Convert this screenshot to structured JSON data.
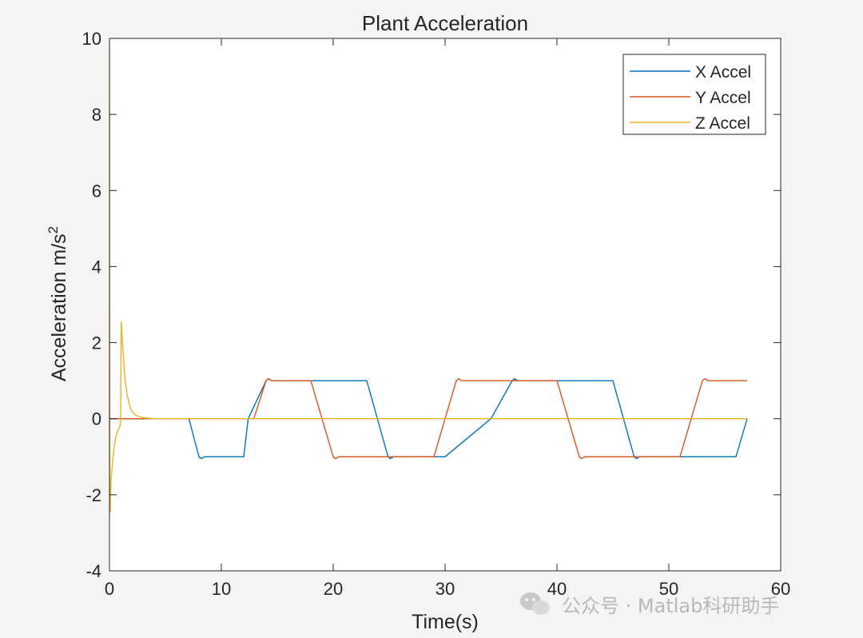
{
  "chart_data": {
    "type": "line",
    "title": "Plant Acceleration",
    "xlabel": "Time(s)",
    "ylabel": "Acceleration m/s",
    "ylabel_superscript": "2",
    "xlim": [
      0,
      60
    ],
    "ylim": [
      -4,
      10
    ],
    "xticks": [
      0,
      10,
      20,
      30,
      40,
      50,
      60
    ],
    "yticks": [
      -4,
      -2,
      0,
      2,
      4,
      6,
      8,
      10
    ],
    "grid": false,
    "legend_position": "top-right",
    "series": [
      {
        "name": "X Accel",
        "color": "#0072BD",
        "x": [
          0,
          7.1,
          8.0,
          8.2,
          8.5,
          10.0,
          12.0,
          12.4,
          14.0,
          14.2,
          14.5,
          18.0,
          21.0,
          23.0,
          24.9,
          25.1,
          25.4,
          27.0,
          29.0,
          30.0,
          34.1,
          36.0,
          36.2,
          36.5,
          40.0,
          43.0,
          45.0,
          46.9,
          47.1,
          47.4,
          50.0,
          51.0,
          56.0,
          57.0
        ],
        "y": [
          0,
          0,
          -1.0,
          -1.05,
          -1.0,
          -1.0,
          -1.0,
          0.0,
          1.0,
          1.05,
          1.0,
          1.0,
          1.0,
          1.0,
          -1.0,
          -1.05,
          -1.0,
          -1.0,
          -1.0,
          -1.0,
          0.0,
          1.0,
          1.05,
          1.0,
          1.0,
          1.0,
          1.0,
          -1.0,
          -1.05,
          -1.0,
          -1.0,
          -1.0,
          -1.0,
          0.0
        ]
      },
      {
        "name": "Y Accel",
        "color": "#D95319",
        "x": [
          0,
          12.9,
          14.0,
          14.2,
          14.5,
          18.0,
          20.0,
          20.2,
          20.5,
          23.0,
          29.0,
          31.0,
          31.2,
          31.5,
          35.0,
          36.0,
          40.0,
          42.0,
          42.2,
          42.5,
          45.0,
          51.0,
          53.0,
          53.2,
          53.5,
          57.0
        ],
        "y": [
          0,
          0,
          1.0,
          1.05,
          1.0,
          1.0,
          -1.0,
          -1.05,
          -1.0,
          -1.0,
          -1.0,
          1.0,
          1.05,
          1.0,
          1.0,
          1.0,
          1.0,
          -1.0,
          -1.05,
          -1.0,
          -1.0,
          -1.0,
          1.0,
          1.05,
          1.0,
          1.0
        ]
      },
      {
        "name": "Z Accel",
        "color": "#EDB120",
        "x": [
          0,
          0.03,
          0.07,
          0.1,
          0.15,
          0.25,
          0.4,
          0.55,
          0.75,
          0.95,
          1.0,
          1.05,
          1.1,
          1.25,
          1.4,
          1.6,
          1.8,
          2.0,
          2.3,
          2.6,
          3.0,
          3.5,
          4.0,
          5.0,
          57.0
        ],
        "y": [
          9.8,
          -2.4,
          -2.45,
          -2.0,
          -1.6,
          -1.2,
          -0.8,
          -0.5,
          -0.3,
          -0.2,
          0.0,
          2.55,
          2.3,
          1.6,
          1.0,
          0.6,
          0.35,
          0.2,
          0.1,
          0.06,
          0.03,
          0.01,
          0.0,
          0.0,
          0.0
        ]
      }
    ]
  },
  "watermark": {
    "text": "公众号 · Matlab科研助手",
    "icon": "wechat-icon"
  }
}
